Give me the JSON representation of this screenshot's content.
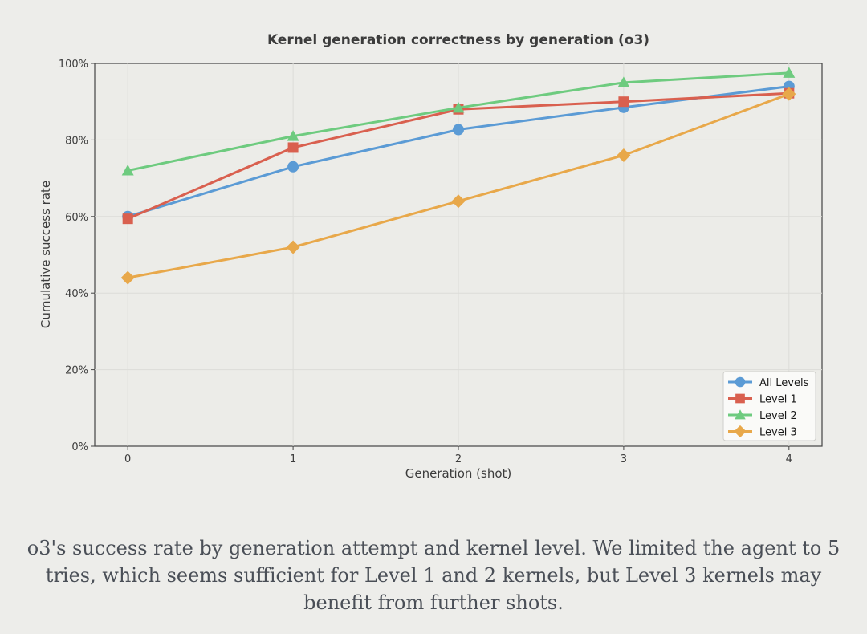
{
  "chart_data": {
    "type": "line",
    "title": "Kernel generation correctness by generation (o3)",
    "xlabel": "Generation (shot)",
    "ylabel": "Cumulative success rate",
    "x": [
      0,
      1,
      2,
      3,
      4
    ],
    "x_ticks": [
      "0",
      "1",
      "2",
      "3",
      "4"
    ],
    "ylim": [
      0,
      100
    ],
    "y_ticks": [
      "0%",
      "20%",
      "40%",
      "60%",
      "80%",
      "100%"
    ],
    "grid": true,
    "legend_position": "bottom-right",
    "series": [
      {
        "name": "All Levels",
        "values": [
          60,
          73,
          82.7,
          88.5,
          94
        ],
        "color": "#5b9bd5",
        "marker": "circle"
      },
      {
        "name": "Level 1",
        "values": [
          59.4,
          78,
          88,
          90,
          92.2
        ],
        "color": "#d9604f",
        "marker": "square"
      },
      {
        "name": "Level 2",
        "values": [
          72,
          81,
          88.4,
          95,
          97.5
        ],
        "color": "#6ecb7f",
        "marker": "triangle"
      },
      {
        "name": "Level 3",
        "values": [
          44,
          52,
          64,
          76,
          92
        ],
        "color": "#e8a84a",
        "marker": "diamond"
      }
    ]
  },
  "caption": "o3's success rate by generation attempt and kernel level. We limited the agent to 5 tries, which seems sufficient for Level 1 and 2 kernels, but Level 3 kernels may benefit from further shots."
}
